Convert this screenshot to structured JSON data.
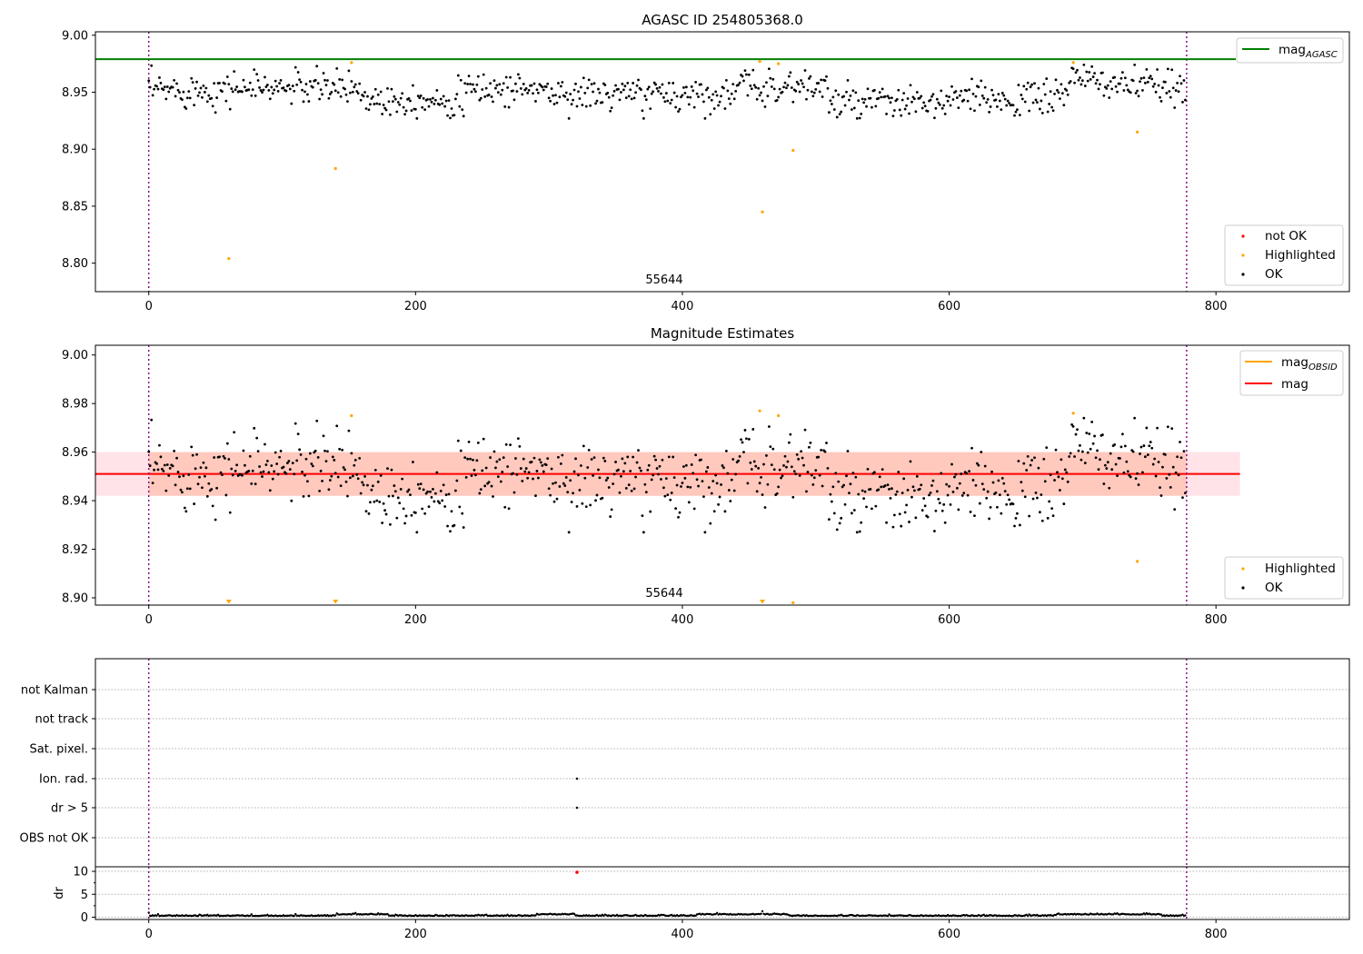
{
  "chart_data": [
    {
      "type": "scatter",
      "title": "AGASC ID 254805368.0",
      "obsid_label": "55644",
      "xlim": [
        -40,
        900
      ],
      "ylim": [
        8.775,
        9.003
      ],
      "xticks": [
        0,
        200,
        400,
        600,
        800
      ],
      "yticks": [
        8.8,
        8.85,
        8.9,
        8.95,
        9.0
      ],
      "ytick_labels": [
        "8.80",
        "8.85",
        "8.90",
        "8.95",
        "9.00"
      ],
      "mag_agasc": 8.979,
      "obs_boundaries": [
        0,
        778
      ],
      "series": [
        {
          "name": "not OK",
          "color": "#ff0000",
          "x": [],
          "y": []
        },
        {
          "name": "Highlighted",
          "color": "#ffa500",
          "x": [
            60,
            140,
            152,
            458,
            472,
            460,
            483,
            693,
            741
          ],
          "y": [
            8.804,
            8.883,
            8.976,
            8.977,
            8.975,
            8.845,
            8.899,
            8.976,
            8.915
          ]
        },
        {
          "name": "OK",
          "color": "#000000",
          "n_points": 778
        }
      ],
      "legend": [
        {
          "name": "mag",
          "sub": "AGASC",
          "color": "#008000",
          "kind": "line"
        },
        {
          "name": "not OK",
          "color": "#ff0000",
          "kind": "point"
        },
        {
          "name": "Highlighted",
          "color": "#ffa500",
          "kind": "point"
        },
        {
          "name": "OK",
          "color": "#000000",
          "kind": "point"
        }
      ],
      "legend_placement": [
        "upper right",
        "lower right"
      ],
      "grid": false
    },
    {
      "type": "scatter",
      "title": "Magnitude Estimates",
      "obsid_label": "55644",
      "xlim": [
        -40,
        900
      ],
      "ylim": [
        8.897,
        9.004
      ],
      "xticks": [
        0,
        200,
        400,
        600,
        800
      ],
      "yticks": [
        8.9,
        8.92,
        8.94,
        8.96,
        8.98,
        9.0
      ],
      "ytick_labels": [
        "8.90",
        "8.92",
        "8.94",
        "8.96",
        "8.98",
        "9.00"
      ],
      "mag": 8.951,
      "mag_band": [
        8.942,
        8.96
      ],
      "band_x_end": 818,
      "obs_boundaries": [
        0,
        778
      ],
      "series": [
        {
          "name": "Highlighted",
          "color": "#ffa500",
          "x": [
            152,
            458,
            472,
            693,
            741,
            483
          ],
          "y": [
            8.975,
            8.977,
            8.975,
            8.976,
            8.915,
            8.898
          ]
        },
        {
          "name": "OK",
          "color": "#000000",
          "n_points": 778
        }
      ],
      "clipped_below": [
        60,
        140,
        460
      ],
      "legend": [
        {
          "name": "mag",
          "sub": "OBSID",
          "color": "#ffa500",
          "kind": "line"
        },
        {
          "name": "mag",
          "color": "#ff0000",
          "kind": "line"
        },
        {
          "name": "Highlighted",
          "color": "#ffa500",
          "kind": "point"
        },
        {
          "name": "OK",
          "color": "#000000",
          "kind": "point"
        }
      ],
      "legend_placement": [
        "upper right",
        "lower right"
      ],
      "grid": false
    },
    {
      "type": "scatter",
      "xlim": [
        -40,
        900
      ],
      "categories": [
        "not Kalman",
        "not track",
        "Sat. pixel.",
        "Ion. rad.",
        "dr > 5",
        "OBS not OK"
      ],
      "flags": [
        {
          "category": "Ion. rad.",
          "x": [
            321
          ]
        },
        {
          "category": "dr > 5",
          "x": [
            321
          ]
        }
      ],
      "obs_boundaries": [
        0,
        778
      ],
      "grid": true
    },
    {
      "type": "scatter",
      "ylabel": "dr",
      "xlim": [
        -40,
        900
      ],
      "ylim": [
        -0.5,
        11
      ],
      "xticks": [
        0,
        200,
        400,
        600,
        800
      ],
      "yticks": [
        0,
        5,
        10
      ],
      "ytick_labels": [
        "0",
        "5",
        "10"
      ],
      "dr_outlier": {
        "x": [
          321
        ],
        "y": [
          9.8
        ],
        "color": "#ff0000"
      },
      "obs_boundaries": [
        0,
        778
      ],
      "grid": true
    }
  ]
}
